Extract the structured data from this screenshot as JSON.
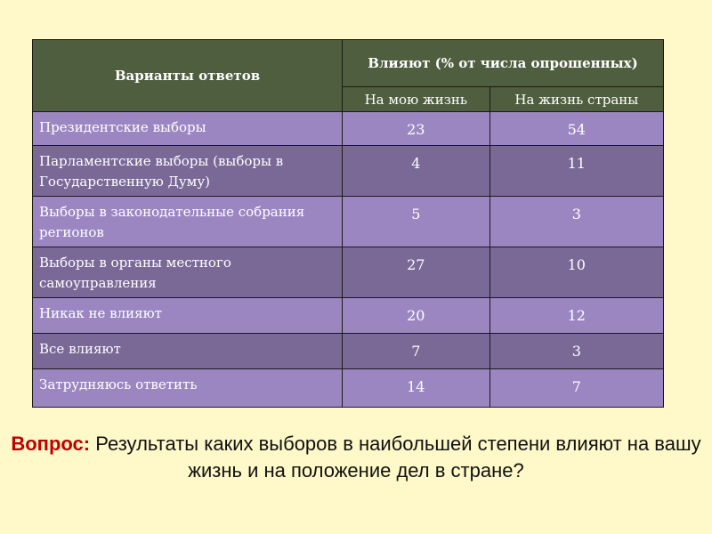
{
  "table": {
    "header_main": "Варианты ответов",
    "header_group": "Влияют (% от числа опрошенных)",
    "header_sub": [
      "На мою жизнь",
      "На жизнь страны"
    ],
    "rows": [
      {
        "label": "Президентские выборы",
        "my": "23",
        "country": "54"
      },
      {
        "label": "Парламентские выборы (выборы в Государственную Думу)",
        "my": "4",
        "country": "11"
      },
      {
        "label": "Выборы в законодательные собрания регионов",
        "my": "5",
        "country": "3"
      },
      {
        "label": "Выборы в органы местного самоуправления",
        "my": "27",
        "country": "10"
      },
      {
        "label": "Никак не влияют",
        "my": "20",
        "country": "12"
      },
      {
        "label": "Все влияют",
        "my": "7",
        "country": "3"
      },
      {
        "label": "Затрудняюсь ответить",
        "my": "14",
        "country": "7"
      }
    ]
  },
  "question": {
    "label": "Вопрос:",
    "text": "Результаты каких выборов в наибольшей степени влияют на вашу жизнь и на положение дел в стране?"
  },
  "colors": {
    "background": "#FFF9C9",
    "header": "#4F5E3E",
    "row_light": "#9C86C2",
    "row_dark": "#7A6897",
    "question_label": "#C00000"
  }
}
